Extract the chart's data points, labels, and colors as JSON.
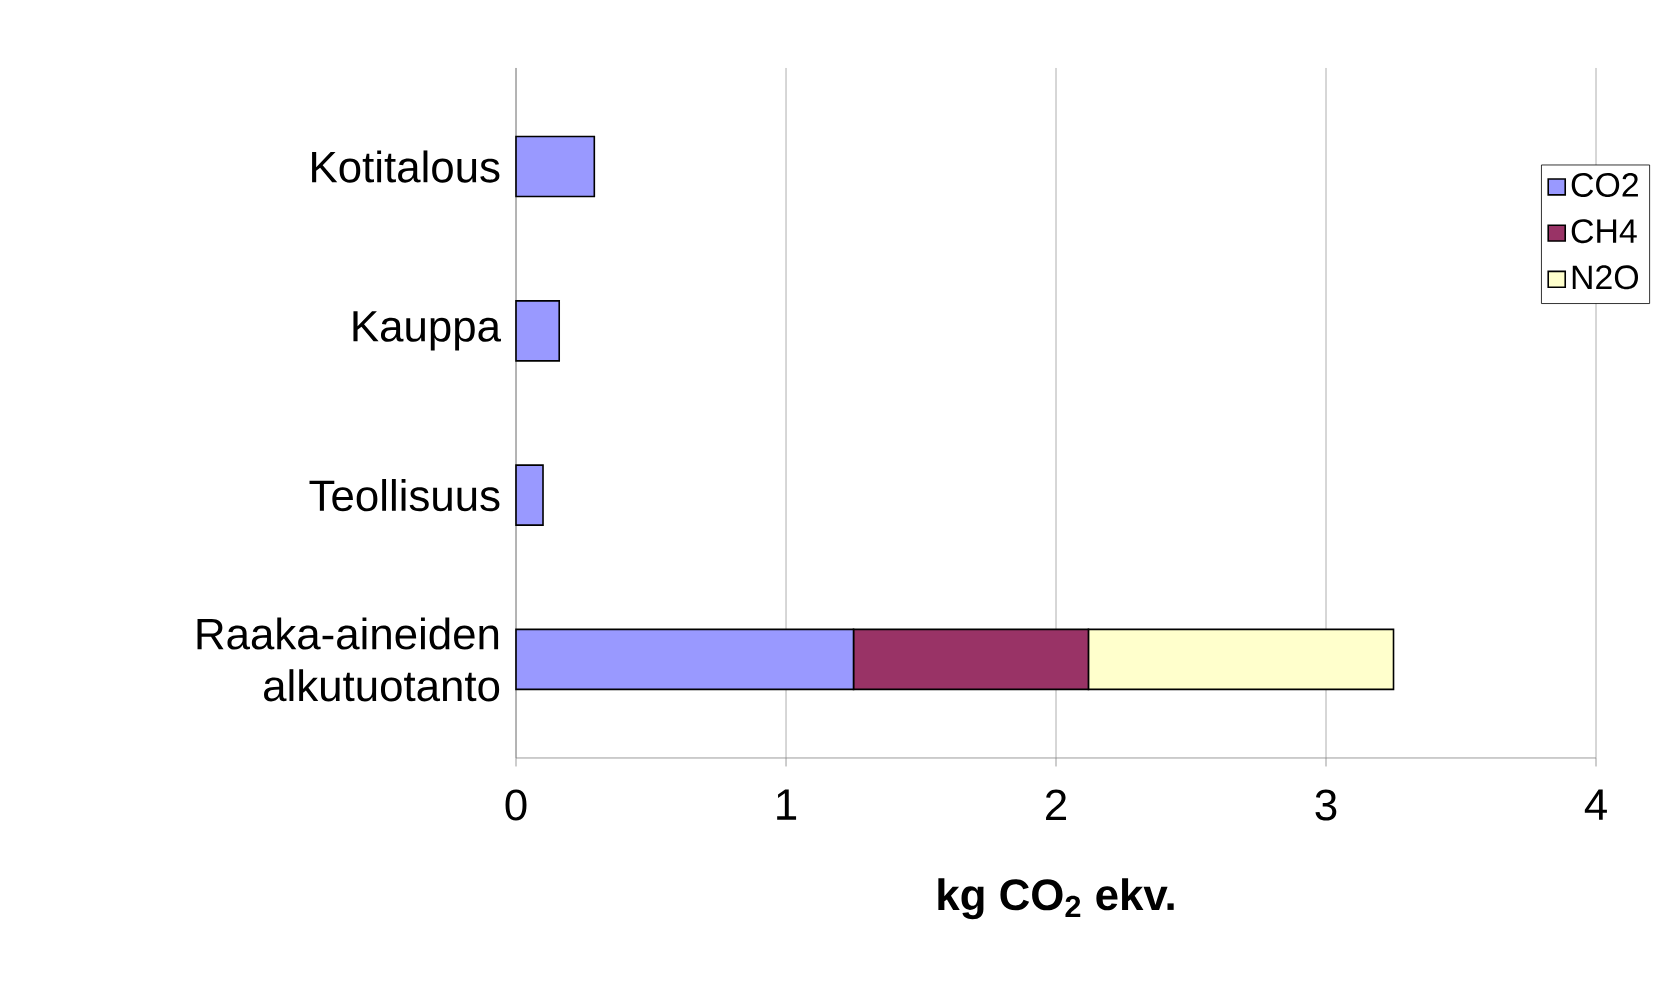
{
  "chart_data": {
    "type": "bar",
    "orientation": "horizontal",
    "stacked": true,
    "xlabel": "kg CO$_{2}$ ekv.",
    "categories": [
      "Kotitalous",
      "Kauppa",
      "Teollisuus",
      "Raaka-aineiden alkutuotanto"
    ],
    "series": [
      {
        "name": "CO2",
        "color": "#9999ff",
        "values": [
          0.29,
          0.16,
          0.1,
          1.25
        ]
      },
      {
        "name": "CH4",
        "color": "#993366",
        "values": [
          null,
          null,
          null,
          0.87
        ]
      },
      {
        "name": "N2O",
        "color": "#ffffcc",
        "values": [
          null,
          null,
          null,
          1.13
        ]
      }
    ],
    "xlim": [
      0,
      4
    ],
    "xticks": [
      0,
      1,
      2,
      3,
      4
    ],
    "grid": "x",
    "legend": "right"
  }
}
